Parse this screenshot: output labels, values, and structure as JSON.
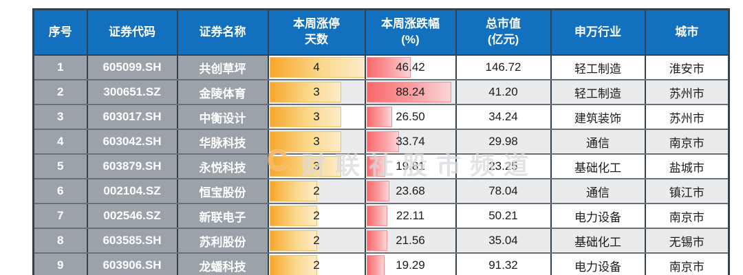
{
  "watermark": {
    "logo": "C",
    "text": "财联社股市频道"
  },
  "colors": {
    "header_bg": "#1270BE",
    "header_text": "#FFFFFF",
    "gray_cell_bg": "#9CA2A9",
    "row_alt_bg": "#E9EBED",
    "row_bg": "#FFFFFF",
    "bar_orange_start": "#F7A62B",
    "bar_orange_end": "#FCEBC9",
    "bar_red_start": "#F8696B",
    "bar_red_end": "#FBD5D7",
    "border_dark": "#33404D"
  },
  "chart_data": {
    "type": "table",
    "title": "",
    "columns": [
      {
        "key": "index",
        "label_lines": [
          "序号"
        ]
      },
      {
        "key": "code",
        "label_lines": [
          "证券代码"
        ]
      },
      {
        "key": "name",
        "label_lines": [
          "证券名称"
        ]
      },
      {
        "key": "limit_up_days",
        "label_lines": [
          "本周涨停",
          "天数"
        ]
      },
      {
        "key": "weekly_change_pct",
        "label_lines": [
          "本周涨跌幅",
          "(%)"
        ]
      },
      {
        "key": "market_cap",
        "label_lines": [
          "总市值",
          "(亿元)"
        ]
      },
      {
        "key": "industry",
        "label_lines": [
          "申万行业"
        ]
      },
      {
        "key": "city",
        "label_lines": [
          "城市"
        ]
      }
    ],
    "bar_scales": {
      "limit_up_days_max": 4,
      "weekly_change_pct_max": 93
    },
    "rows": [
      {
        "index": "1",
        "code": "605099.SH",
        "name": "共创草坪",
        "limit_up_days": 4,
        "weekly_change_pct": 46.42,
        "weekly_change_pct_label": "46.42",
        "market_cap": "146.72",
        "industry": "轻工制造",
        "city": "淮安市"
      },
      {
        "index": "2",
        "code": "300651.SZ",
        "name": "金陵体育",
        "limit_up_days": 3,
        "weekly_change_pct": 88.24,
        "weekly_change_pct_label": "88.24",
        "market_cap": "41.20",
        "industry": "轻工制造",
        "city": "苏州市"
      },
      {
        "index": "3",
        "code": "603017.SH",
        "name": "中衡设计",
        "limit_up_days": 3,
        "weekly_change_pct": 26.5,
        "weekly_change_pct_label": "26.50",
        "market_cap": "34.24",
        "industry": "建筑装饰",
        "city": "苏州市"
      },
      {
        "index": "4",
        "code": "603042.SH",
        "name": "华脉科技",
        "limit_up_days": 3,
        "weekly_change_pct": 33.74,
        "weekly_change_pct_label": "33.74",
        "market_cap": "29.98",
        "industry": "通信",
        "city": "南京市"
      },
      {
        "index": "5",
        "code": "603879.SH",
        "name": "永悦科技",
        "limit_up_days": 3,
        "weekly_change_pct": 19.81,
        "weekly_change_pct_label": "19.81",
        "market_cap": "23.25",
        "industry": "基础化工",
        "city": "盐城市"
      },
      {
        "index": "6",
        "code": "002104.SZ",
        "name": "恒宝股份",
        "limit_up_days": 2,
        "weekly_change_pct": 23.68,
        "weekly_change_pct_label": "23.68",
        "market_cap": "78.04",
        "industry": "通信",
        "city": "镇江市"
      },
      {
        "index": "7",
        "code": "002546.SZ",
        "name": "新联电子",
        "limit_up_days": 2,
        "weekly_change_pct": 22.11,
        "weekly_change_pct_label": "22.11",
        "market_cap": "50.21",
        "industry": "电力设备",
        "city": "南京市"
      },
      {
        "index": "8",
        "code": "603585.SH",
        "name": "苏利股份",
        "limit_up_days": 2,
        "weekly_change_pct": 21.56,
        "weekly_change_pct_label": "21.56",
        "market_cap": "35.04",
        "industry": "基础化工",
        "city": "无锡市"
      },
      {
        "index": "9",
        "code": "603906.SH",
        "name": "龙蟠科技",
        "limit_up_days": 2,
        "weekly_change_pct": 19.29,
        "weekly_change_pct_label": "19.29",
        "market_cap": "91.32",
        "industry": "电力设备",
        "city": "南京市"
      }
    ]
  }
}
